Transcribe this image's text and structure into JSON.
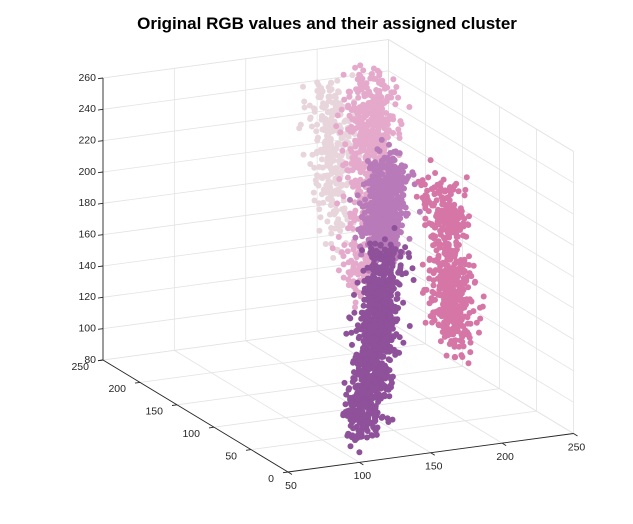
{
  "chart_data": {
    "type": "scatter",
    "projection": "3d",
    "title": "Original RGB values and their assigned cluster",
    "xlabel": "",
    "ylabel": "",
    "zlabel": "",
    "xlim": [
      50,
      250
    ],
    "ylim": [
      0,
      250
    ],
    "zlim": [
      80,
      260
    ],
    "xticks": [
      50,
      100,
      150,
      200,
      250
    ],
    "yticks": [
      0,
      50,
      100,
      150,
      200,
      250
    ],
    "zticks": [
      80,
      100,
      120,
      140,
      160,
      180,
      200,
      220,
      240,
      260
    ],
    "grid": true,
    "series": [
      {
        "color": "#E8D5DC",
        "description_points": [
          [
            180,
            205,
            248
          ],
          [
            190,
            200,
            240
          ],
          [
            175,
            190,
            230
          ],
          [
            185,
            185,
            225
          ],
          [
            170,
            180,
            218
          ],
          [
            178,
            172,
            210
          ],
          [
            165,
            165,
            200
          ],
          [
            160,
            150,
            190
          ],
          [
            175,
            195,
            236
          ],
          [
            188,
            208,
            252
          ],
          [
            158,
            140,
            182
          ],
          [
            168,
            160,
            205
          ],
          [
            172,
            176,
            214
          ],
          [
            182,
            192,
            232
          ],
          [
            176,
            186,
            222
          ],
          [
            152,
            130,
            172
          ]
        ]
      },
      {
        "color": "#E5A9CB",
        "description_points": [
          [
            205,
            200,
            252
          ],
          [
            215,
            195,
            245
          ],
          [
            200,
            185,
            238
          ],
          [
            210,
            180,
            230
          ],
          [
            195,
            170,
            222
          ],
          [
            200,
            160,
            212
          ],
          [
            185,
            150,
            200
          ],
          [
            175,
            140,
            190
          ],
          [
            190,
            155,
            205
          ],
          [
            215,
            205,
            255
          ],
          [
            170,
            125,
            175
          ],
          [
            160,
            115,
            165
          ],
          [
            180,
            135,
            185
          ],
          [
            195,
            175,
            228
          ],
          [
            205,
            190,
            242
          ],
          [
            150,
            105,
            158
          ],
          [
            165,
            110,
            160
          ],
          [
            185,
            165,
            215
          ],
          [
            198,
            178,
            232
          ],
          [
            208,
            188,
            236
          ]
        ]
      },
      {
        "color": "#B87AB8",
        "description_points": [
          [
            195,
            150,
            215
          ],
          [
            205,
            155,
            210
          ],
          [
            185,
            140,
            200
          ],
          [
            195,
            135,
            192
          ],
          [
            180,
            125,
            185
          ],
          [
            175,
            120,
            178
          ],
          [
            190,
            130,
            195
          ],
          [
            200,
            145,
            205
          ],
          [
            170,
            110,
            172
          ],
          [
            185,
            118,
            180
          ],
          [
            178,
            132,
            190
          ],
          [
            192,
            142,
            200
          ]
        ]
      },
      {
        "color": "#D676A6",
        "description_points": [
          [
            225,
            140,
            200
          ],
          [
            230,
            130,
            185
          ],
          [
            220,
            115,
            172
          ],
          [
            215,
            100,
            158
          ],
          [
            210,
            90,
            148
          ],
          [
            205,
            75,
            135
          ],
          [
            200,
            65,
            125
          ],
          [
            225,
            120,
            178
          ],
          [
            235,
            145,
            195
          ],
          [
            212,
            85,
            142
          ],
          [
            218,
            105,
            165
          ],
          [
            198,
            60,
            118
          ]
        ]
      },
      {
        "color": "#8E519A",
        "description_points": [
          [
            175,
            110,
            175
          ],
          [
            165,
            95,
            160
          ],
          [
            155,
            80,
            145
          ],
          [
            145,
            65,
            130
          ],
          [
            135,
            50,
            115
          ],
          [
            125,
            40,
            103
          ],
          [
            115,
            30,
            90
          ],
          [
            170,
            100,
            165
          ],
          [
            150,
            75,
            140
          ],
          [
            140,
            55,
            122
          ],
          [
            120,
            35,
            95
          ],
          [
            160,
            90,
            155
          ],
          [
            130,
            45,
            108
          ],
          [
            180,
            115,
            172
          ],
          [
            110,
            25,
            86
          ],
          [
            145,
            60,
            126
          ]
        ]
      }
    ]
  }
}
